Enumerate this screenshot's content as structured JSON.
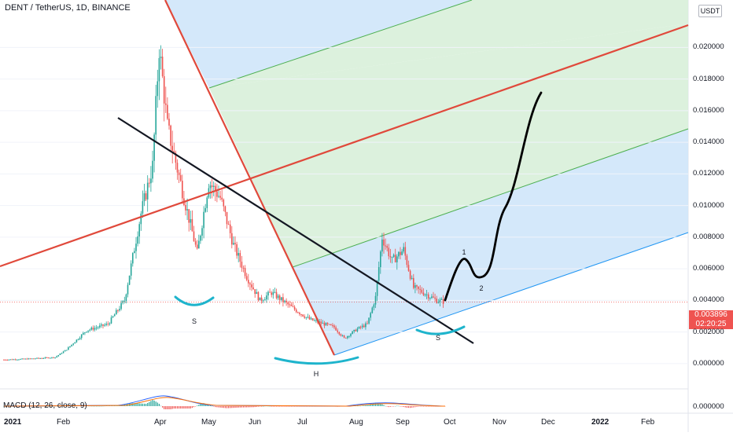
{
  "header": {
    "symbol_title": "DENT / TetherUS, 1D, BINANCE",
    "unit_badge": "USDT"
  },
  "price_tag": {
    "price": "0.003896",
    "countdown": "02:20:25"
  },
  "macd": {
    "label": "MACD (12, 26, close, 9)",
    "value": "0.000000"
  },
  "colors": {
    "candle_up": "#26a69a",
    "candle_down": "#ef5350",
    "pitchfork_red": "#e0493b",
    "trendline": "#131722",
    "pattern_arc": "#1eb4cc",
    "fork_blue_fill": "#cfe5fa",
    "fork_green_fill": "#d8efd9",
    "fork_channel_line": "#4caf50",
    "fork_blue_line": "#2196f3"
  },
  "annotations": {
    "left_shoulder": "S",
    "head": "H",
    "right_shoulder": "S",
    "wave_1": "1",
    "wave_2": "2"
  },
  "chart_data": {
    "type": "candlestick",
    "title": "DENT / TetherUS, 1D, BINANCE",
    "x_ticks": [
      "2021",
      "Feb",
      "Apr",
      "May",
      "Jun",
      "Jul",
      "Aug",
      "Sep",
      "Oct",
      "Nov",
      "Dec",
      "2022",
      "Feb"
    ],
    "y_ticks": [
      "0.000000",
      "0.002000",
      "0.004000",
      "0.006000",
      "0.008000",
      "0.010000",
      "0.012000",
      "0.014000",
      "0.016000",
      "0.018000",
      "0.020000"
    ],
    "ylim": [
      -0.001,
      0.0228
    ],
    "current_price": 0.003896,
    "close_path": [
      [
        "2021-01-01",
        0.00025
      ],
      [
        "2021-01-15",
        0.0003
      ],
      [
        "2021-02-01",
        0.0004
      ],
      [
        "2021-02-08",
        0.0009
      ],
      [
        "2021-02-20",
        0.0021
      ],
      [
        "2021-03-05",
        0.0025
      ],
      [
        "2021-03-15",
        0.004
      ],
      [
        "2021-03-25",
        0.0095
      ],
      [
        "2021-04-01",
        0.0125
      ],
      [
        "2021-04-05",
        0.02
      ],
      [
        "2021-04-10",
        0.015
      ],
      [
        "2021-04-20",
        0.0105
      ],
      [
        "2021-04-28",
        0.007
      ],
      [
        "2021-05-05",
        0.0115
      ],
      [
        "2021-05-12",
        0.0105
      ],
      [
        "2021-05-20",
        0.0075
      ],
      [
        "2021-05-28",
        0.0055
      ],
      [
        "2021-06-05",
        0.004
      ],
      [
        "2021-06-12",
        0.0045
      ],
      [
        "2021-06-25",
        0.0035
      ],
      [
        "2021-07-05",
        0.0028
      ],
      [
        "2021-07-20",
        0.0023
      ],
      [
        "2021-07-26",
        0.0016
      ],
      [
        "2021-08-03",
        0.0022
      ],
      [
        "2021-08-09",
        0.0025
      ],
      [
        "2021-08-14",
        0.0042
      ],
      [
        "2021-08-18",
        0.008
      ],
      [
        "2021-08-24",
        0.0065
      ],
      [
        "2021-08-31",
        0.0072
      ],
      [
        "2021-09-06",
        0.0048
      ],
      [
        "2021-09-12",
        0.0045
      ],
      [
        "2021-09-20",
        0.004
      ],
      [
        "2021-09-25",
        0.003896
      ]
    ],
    "projection_waypoints": [
      0.0048,
      0.0075,
      0.0063,
      0.0065,
      0.01,
      0.0172
    ],
    "macd_range": [
      -0.0003,
      0.0004
    ]
  }
}
